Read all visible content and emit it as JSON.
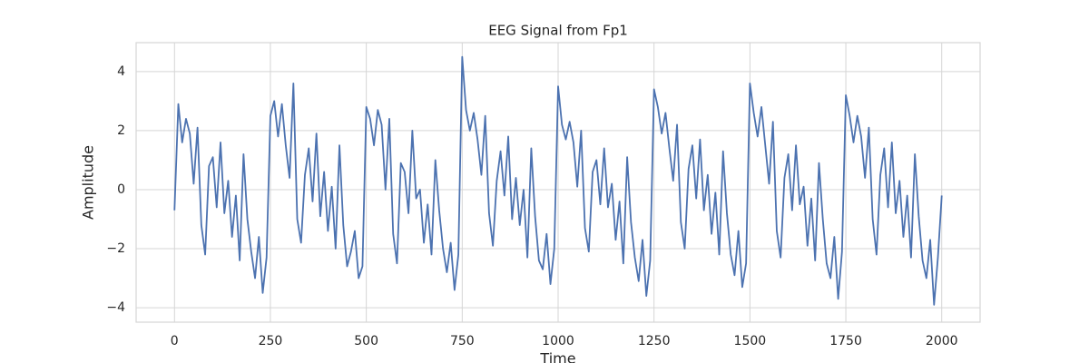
{
  "chart_data": {
    "type": "line",
    "title": "EEG Signal from Fp1",
    "x_label": "Time",
    "y_label": "Amplitude",
    "color": "#4c72b0",
    "grid": true,
    "xlim": [
      -100,
      2100
    ],
    "ylim": [
      -4.49,
      4.98
    ],
    "xticks": [
      0,
      250,
      500,
      750,
      1000,
      1250,
      1500,
      1750,
      2000
    ],
    "yticks": [
      {
        "value": -4,
        "label": "−4"
      },
      {
        "value": -2,
        "label": "−2"
      },
      0,
      2,
      4
    ],
    "x": [
      0,
      10,
      20,
      30,
      40,
      50,
      60,
      70,
      80,
      90,
      100,
      110,
      120,
      130,
      140,
      150,
      160,
      170,
      180,
      190,
      200,
      210,
      220,
      230,
      240,
      250,
      260,
      270,
      280,
      290,
      300,
      310,
      320,
      330,
      340,
      350,
      360,
      370,
      380,
      390,
      400,
      410,
      420,
      430,
      440,
      450,
      460,
      470,
      480,
      490,
      500,
      510,
      520,
      530,
      540,
      550,
      560,
      570,
      580,
      590,
      600,
      610,
      620,
      630,
      640,
      650,
      660,
      670,
      680,
      690,
      700,
      710,
      720,
      730,
      740,
      750,
      760,
      770,
      780,
      790,
      800,
      810,
      820,
      830,
      840,
      850,
      860,
      870,
      880,
      890,
      900,
      910,
      920,
      930,
      940,
      950,
      960,
      970,
      980,
      990,
      1000,
      1010,
      1020,
      1030,
      1040,
      1050,
      1060,
      1070,
      1080,
      1090,
      1100,
      1110,
      1120,
      1130,
      1140,
      1150,
      1160,
      1170,
      1180,
      1190,
      1200,
      1210,
      1220,
      1230,
      1240,
      1250,
      1260,
      1270,
      1280,
      1290,
      1300,
      1310,
      1320,
      1330,
      1340,
      1350,
      1360,
      1370,
      1380,
      1390,
      1400,
      1410,
      1420,
      1430,
      1440,
      1450,
      1460,
      1470,
      1480,
      1490,
      1500,
      1510,
      1520,
      1530,
      1540,
      1550,
      1560,
      1570,
      1580,
      1590,
      1600,
      1610,
      1620,
      1630,
      1640,
      1650,
      1660,
      1670,
      1680,
      1690,
      1700,
      1710,
      1720,
      1730,
      1740,
      1750,
      1760,
      1770,
      1780,
      1790,
      1800,
      1810,
      1820,
      1830,
      1840,
      1850,
      1860,
      1870,
      1880,
      1890,
      1900,
      1910,
      1920,
      1930,
      1940,
      1950,
      1960,
      1970,
      1980,
      1990,
      2000
    ],
    "values": [
      -0.7,
      2.9,
      1.6,
      2.4,
      1.9,
      0.2,
      2.1,
      -1.2,
      -2.2,
      0.8,
      1.1,
      -0.6,
      1.6,
      -0.8,
      0.3,
      -1.6,
      -0.2,
      -2.4,
      1.2,
      -1.0,
      -2.1,
      -3.0,
      -1.6,
      -3.5,
      -2.3,
      2.5,
      3.0,
      1.8,
      2.9,
      1.5,
      0.4,
      3.6,
      -1.0,
      -1.8,
      0.5,
      1.4,
      -0.4,
      1.9,
      -0.9,
      0.6,
      -1.4,
      0.1,
      -2.0,
      1.5,
      -1.2,
      -2.6,
      -2.1,
      -1.4,
      -3.0,
      -2.6,
      2.8,
      2.4,
      1.5,
      2.7,
      2.2,
      0.0,
      2.4,
      -1.5,
      -2.5,
      0.9,
      0.6,
      -0.8,
      2.0,
      -0.3,
      0.0,
      -1.8,
      -0.5,
      -2.2,
      1.0,
      -0.7,
      -2.0,
      -2.8,
      -1.8,
      -3.4,
      -2.2,
      4.5,
      2.7,
      2.0,
      2.6,
      1.7,
      0.5,
      2.5,
      -0.8,
      -1.9,
      0.3,
      1.3,
      -0.2,
      1.8,
      -1.0,
      0.4,
      -1.2,
      0.0,
      -2.3,
      1.4,
      -0.9,
      -2.4,
      -2.7,
      -1.5,
      -3.2,
      -2.0,
      3.5,
      2.2,
      1.7,
      2.3,
      1.6,
      0.1,
      2.0,
      -1.3,
      -2.1,
      0.6,
      1.0,
      -0.5,
      1.4,
      -0.6,
      0.2,
      -1.7,
      -0.4,
      -2.5,
      1.1,
      -1.1,
      -2.3,
      -3.1,
      -1.7,
      -3.6,
      -2.4,
      3.4,
      2.8,
      1.9,
      2.6,
      1.4,
      0.3,
      2.2,
      -1.1,
      -2.0,
      0.7,
      1.5,
      -0.3,
      1.7,
      -0.7,
      0.5,
      -1.5,
      -0.1,
      -2.2,
      1.3,
      -0.8,
      -2.2,
      -2.9,
      -1.4,
      -3.3,
      -2.5,
      3.6,
      2.6,
      1.8,
      2.8,
      1.5,
      0.2,
      2.3,
      -1.4,
      -2.3,
      0.4,
      1.2,
      -0.7,
      1.5,
      -0.5,
      0.1,
      -1.9,
      -0.3,
      -2.4,
      0.9,
      -1.0,
      -2.5,
      -3.0,
      -1.6,
      -3.7,
      -2.1,
      3.2,
      2.5,
      1.6,
      2.5,
      1.8,
      0.4,
      2.1,
      -1.0,
      -2.2,
      0.5,
      1.4,
      -0.6,
      1.6,
      -0.8,
      0.3,
      -1.6,
      -0.2,
      -2.3,
      1.2,
      -0.9,
      -2.4,
      -3.0,
      -1.7,
      -3.9,
      -2.3,
      -0.2
    ]
  }
}
